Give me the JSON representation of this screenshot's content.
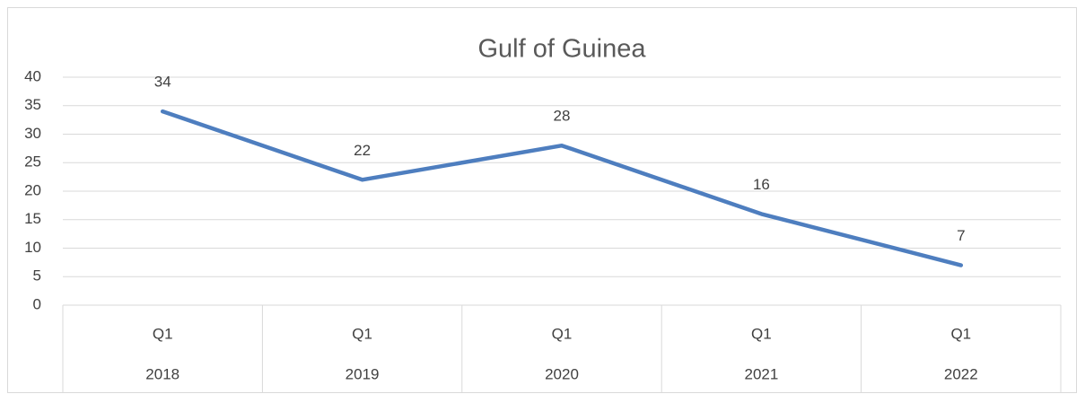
{
  "chart_data": {
    "type": "line",
    "title": "Gulf of Guinea",
    "categories": [
      "Q1",
      "Q1",
      "Q1",
      "Q1",
      "Q1"
    ],
    "category_groups": [
      "2018",
      "2019",
      "2020",
      "2021",
      "2022"
    ],
    "values": [
      34,
      22,
      28,
      16,
      7
    ],
    "color": "#4e7ebf",
    "ylim": [
      0,
      40
    ],
    "yticks": [
      0,
      5,
      10,
      15,
      20,
      25,
      30,
      35,
      40
    ],
    "grid": true
  }
}
